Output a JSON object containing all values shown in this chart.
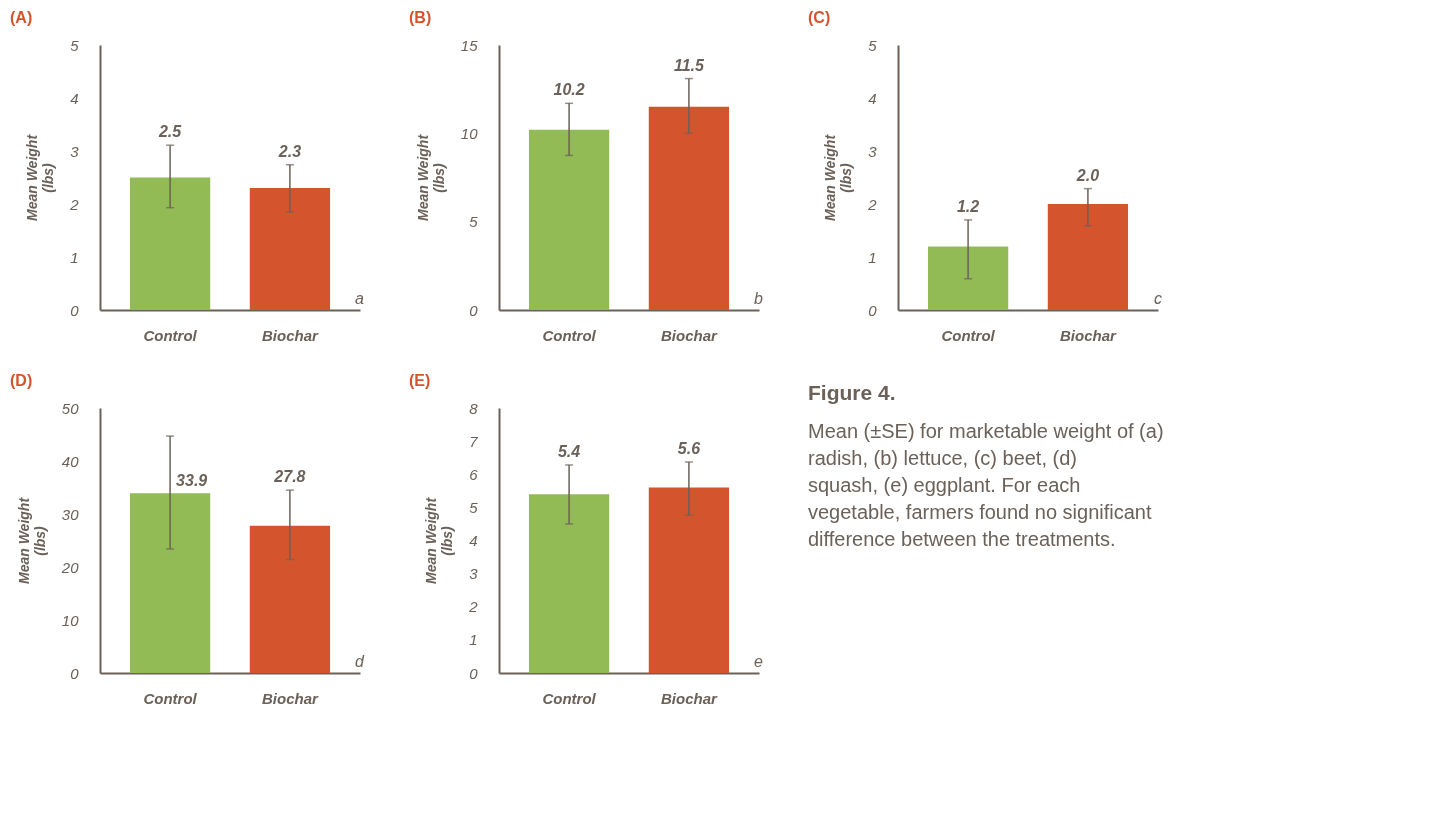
{
  "chart_data": [
    {
      "type": "bar",
      "title": "(A)",
      "ylabel": "Mean Weight\n(lbs)",
      "categories": [
        "Control",
        "Biochar"
      ],
      "values": [
        2.5,
        2.3
      ],
      "colors": [
        "#93bb55",
        "#d4552d"
      ],
      "value_labels": [
        "2.5",
        "2.3"
      ],
      "errors": [
        [
          1.93,
          3.11
        ],
        [
          1.85,
          2.74
        ]
      ],
      "ylim": [
        0,
        5
      ],
      "yticks": [
        0,
        1,
        2,
        3,
        4,
        5
      ],
      "annotations": [
        "a"
      ]
    },
    {
      "type": "bar",
      "title": "(B)",
      "ylabel": "Mean Weight\n(lbs)",
      "categories": [
        "Control",
        "Biochar"
      ],
      "values": [
        10.2,
        11.5
      ],
      "colors": [
        "#93bb55",
        "#d4552d"
      ],
      "value_labels": [
        "10.2",
        "11.5"
      ],
      "errors": [
        [
          8.75,
          11.7
        ],
        [
          10.0,
          13.1
        ]
      ],
      "ylim": [
        0,
        15
      ],
      "yticks": [
        0,
        5,
        10,
        15
      ],
      "annotations": [
        "b"
      ]
    },
    {
      "type": "bar",
      "title": "(C)",
      "ylabel": "Mean Weight\n(lbs)",
      "categories": [
        "Control",
        "Biochar"
      ],
      "values": [
        1.2,
        2.0
      ],
      "colors": [
        "#93bb55",
        "#d4552d"
      ],
      "value_labels": [
        "1.2",
        "2.0"
      ],
      "errors": [
        [
          0.59,
          1.7
        ],
        [
          1.59,
          2.29
        ]
      ],
      "ylim": [
        0,
        5
      ],
      "yticks": [
        0,
        1,
        2,
        3,
        4,
        5
      ],
      "annotations": [
        "c"
      ]
    },
    {
      "type": "bar",
      "title": "(D)",
      "ylabel": "Mean Weight\n(lbs)",
      "categories": [
        "Control",
        "Biochar"
      ],
      "values": [
        33.9,
        27.8
      ],
      "colors": [
        "#93bb55",
        "#d4552d"
      ],
      "value_labels": [
        "33.9",
        "27.8"
      ],
      "errors": [
        [
          23.4,
          44.7
        ],
        [
          21.4,
          34.5
        ]
      ],
      "ylim": [
        0,
        50
      ],
      "yticks": [
        0,
        10,
        20,
        30,
        40,
        50
      ],
      "annotations": [
        "d"
      ]
    },
    {
      "type": "bar",
      "title": "(E)",
      "ylabel": "Mean Weight\n(lbs)",
      "categories": [
        "Control",
        "Biochar"
      ],
      "values": [
        5.4,
        5.6
      ],
      "colors": [
        "#93bb55",
        "#d4552d"
      ],
      "value_labels": [
        "5.4",
        "5.6"
      ],
      "errors": [
        [
          4.5,
          6.28
        ],
        [
          4.77,
          6.37
        ]
      ],
      "ylim": [
        0,
        8
      ],
      "yticks": [
        0,
        1,
        2,
        3,
        4,
        5,
        6,
        7,
        8
      ],
      "annotations": [
        "e"
      ]
    },
    {
      "type": "other",
      "title": "Figure 4.",
      "annotations": [
        "Mean (±SE) for marketable weight of (a) radish, (b) lettuce, (c) beet, (d) squash, (e) eggplant. For each vegetable, farmers found no significant difference between the treatments."
      ]
    }
  ]
}
